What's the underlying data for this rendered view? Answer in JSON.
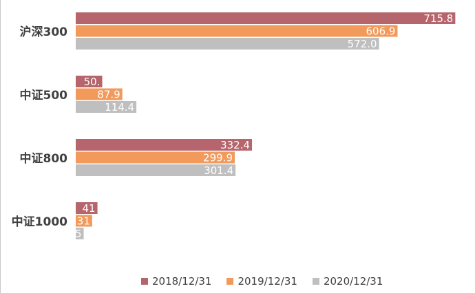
{
  "chart_data": {
    "type": "bar",
    "orientation": "horizontal",
    "categories": [
      "沪深300",
      "中证500",
      "中证800",
      "中证1000"
    ],
    "series": [
      {
        "name": "2018/12/31",
        "color": "#B5656B",
        "values": [
          715.8,
          50.0,
          332.4,
          41
        ],
        "labels": [
          "715.8",
          "50.",
          "332.4",
          "41"
        ]
      },
      {
        "name": "2019/12/31",
        "color": "#F29A5C",
        "values": [
          606.9,
          87.9,
          299.9,
          31
        ],
        "labels": [
          "606.9",
          "87.9",
          "299.9",
          "31"
        ]
      },
      {
        "name": "2020/12/31",
        "color": "#BFBFBF",
        "values": [
          572.0,
          114.4,
          301.4,
          15
        ],
        "labels": [
          "572.0",
          "114.4",
          "301.4",
          "15"
        ]
      }
    ],
    "xlim": [
      0,
      740
    ],
    "grid": false,
    "legend_position": "bottom"
  }
}
